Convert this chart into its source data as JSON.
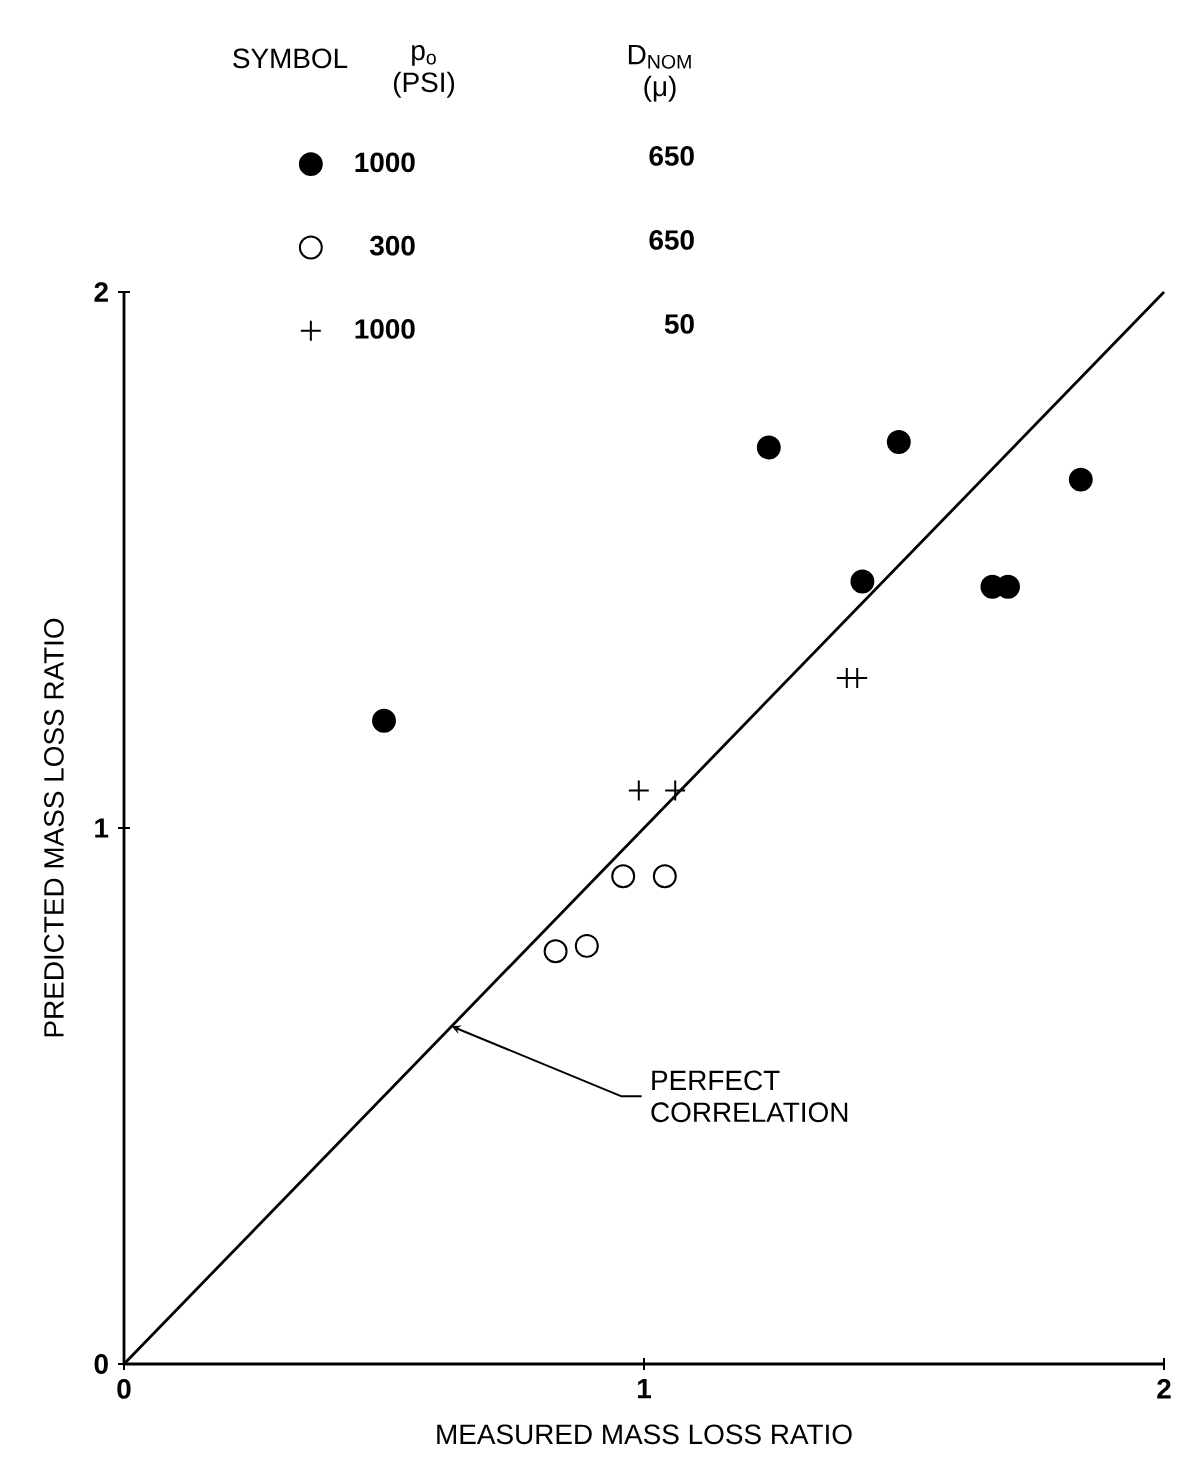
{
  "chart_data": {
    "type": "scatter",
    "xlabel": "MEASURED MASS LOSS RATIO",
    "ylabel": "PREDICTED MASS LOSS RATIO",
    "legend_title": "SYMBOL",
    "legend": "top",
    "xlim": [
      0,
      2
    ],
    "ylim": [
      0,
      2
    ],
    "xticks": [
      0,
      1,
      2
    ],
    "yticks": [
      0,
      1,
      2
    ],
    "grid": false,
    "series": [
      {
        "name": "1000",
        "color": "#000000",
        "marker": "circle",
        "x": [
          0.5,
          1.24,
          1.49,
          1.42,
          1.67,
          1.7,
          1.84
        ],
        "values": [
          1.2,
          1.71,
          1.72,
          1.46,
          1.45,
          1.45,
          1.65
        ]
      },
      {
        "name": "300",
        "color": "#ffffff",
        "marker": "circle",
        "x": [
          0.83,
          0.89,
          0.96,
          1.04
        ],
        "values": [
          0.77,
          0.78,
          0.91,
          0.91
        ]
      },
      {
        "name": "1000",
        "color": "#000000",
        "marker": "cross",
        "x": [
          0.99,
          1.06,
          1.39,
          1.41
        ],
        "values": [
          1.07,
          1.07,
          1.28,
          1.28
        ]
      },
      {
        "type": "line",
        "color": "#000000",
        "line_style": "solid",
        "x": [
          0,
          2
        ],
        "values": [
          0,
          2
        ]
      }
    ],
    "annotations": [
      "p$_{o}$ (PSI)",
      "D$_{NOM}$ (μ)",
      "650",
      "650",
      "50",
      {
        "text": "PERFECT CORRELATION",
        "x": 0.63,
        "y": 0.63
      }
    ]
  }
}
